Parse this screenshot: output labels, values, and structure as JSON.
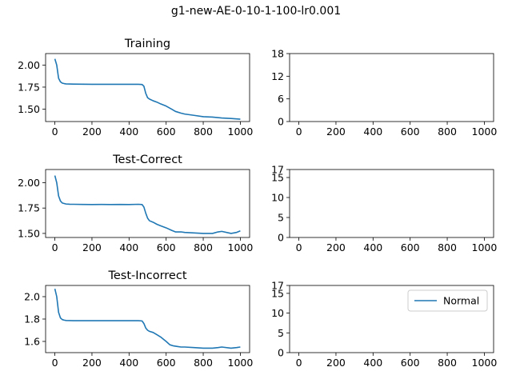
{
  "figure": {
    "title": "g1-new-AE-0-10-1-100-lr0.001"
  },
  "colors": {
    "line": "#1f77b4",
    "axes": "#000000",
    "legend_border": "#cccccc"
  },
  "chart_data": [
    {
      "id": "training",
      "type": "line",
      "title": "Training",
      "xlim": [
        -50,
        1050
      ],
      "ylim": [
        1.36,
        2.13
      ],
      "xticks": [
        0,
        200,
        400,
        600,
        800,
        1000
      ],
      "yticks": [
        1.5,
        1.75,
        2.0
      ],
      "ytick_labels": [
        "1.50",
        "1.75",
        "2.00"
      ],
      "x": [
        0,
        10,
        20,
        30,
        40,
        50,
        60,
        80,
        100,
        150,
        200,
        250,
        300,
        350,
        400,
        450,
        470,
        480,
        490,
        500,
        510,
        530,
        550,
        570,
        600,
        630,
        650,
        680,
        700,
        750,
        800,
        850,
        900,
        950,
        1000
      ],
      "y": [
        2.07,
        2.0,
        1.85,
        1.81,
        1.795,
        1.79,
        1.786,
        1.785,
        1.784,
        1.783,
        1.782,
        1.782,
        1.782,
        1.782,
        1.782,
        1.782,
        1.78,
        1.76,
        1.68,
        1.63,
        1.615,
        1.595,
        1.58,
        1.56,
        1.535,
        1.5,
        1.475,
        1.455,
        1.445,
        1.43,
        1.415,
        1.41,
        1.4,
        1.395,
        1.387
      ],
      "grid": false
    },
    {
      "id": "training-count",
      "type": "line",
      "title": "",
      "xlim": [
        -50,
        1050
      ],
      "ylim": [
        0,
        18
      ],
      "xticks": [
        0,
        200,
        400,
        600,
        800,
        1000
      ],
      "yticks": [
        0,
        6,
        12,
        18
      ],
      "ytick_labels": [
        "0",
        "6",
        "12",
        "18"
      ],
      "series": [],
      "grid": false
    },
    {
      "id": "test-correct",
      "type": "line",
      "title": "Test-Correct",
      "xlim": [
        -50,
        1050
      ],
      "ylim": [
        1.46,
        2.13
      ],
      "xticks": [
        0,
        200,
        400,
        600,
        800,
        1000
      ],
      "yticks": [
        1.5,
        1.75,
        2.0
      ],
      "ytick_labels": [
        "1.50",
        "1.75",
        "2.00"
      ],
      "x": [
        0,
        10,
        20,
        30,
        40,
        50,
        60,
        80,
        100,
        150,
        200,
        250,
        300,
        350,
        400,
        450,
        470,
        480,
        490,
        500,
        510,
        530,
        550,
        570,
        600,
        630,
        650,
        680,
        700,
        750,
        800,
        850,
        880,
        900,
        950,
        980,
        1000
      ],
      "y": [
        2.07,
        2.0,
        1.87,
        1.82,
        1.8,
        1.795,
        1.79,
        1.788,
        1.787,
        1.786,
        1.785,
        1.786,
        1.785,
        1.786,
        1.785,
        1.787,
        1.785,
        1.76,
        1.7,
        1.65,
        1.625,
        1.61,
        1.59,
        1.575,
        1.555,
        1.53,
        1.515,
        1.515,
        1.51,
        1.505,
        1.5,
        1.5,
        1.515,
        1.52,
        1.5,
        1.51,
        1.525
      ],
      "grid": false
    },
    {
      "id": "test-correct-count",
      "type": "line",
      "title": "",
      "xlim": [
        -50,
        1050
      ],
      "ylim": [
        0,
        17
      ],
      "xticks": [
        0,
        200,
        400,
        600,
        800,
        1000
      ],
      "yticks": [
        0,
        5,
        10,
        15,
        17
      ],
      "ytick_labels": [
        "0",
        "5",
        "10",
        "15",
        "17"
      ],
      "series": [],
      "grid": false
    },
    {
      "id": "test-incorrect",
      "type": "line",
      "title": "Test-Incorrect",
      "xlim": [
        -50,
        1050
      ],
      "ylim": [
        1.5,
        2.1
      ],
      "xticks": [
        0,
        200,
        400,
        600,
        800,
        1000
      ],
      "yticks": [
        1.6,
        1.8,
        2.0
      ],
      "ytick_labels": [
        "1.6",
        "1.8",
        "2.0"
      ],
      "x": [
        0,
        10,
        20,
        30,
        40,
        50,
        60,
        80,
        100,
        150,
        200,
        250,
        300,
        350,
        400,
        450,
        470,
        480,
        490,
        500,
        510,
        530,
        550,
        570,
        600,
        620,
        640,
        660,
        680,
        700,
        750,
        800,
        850,
        880,
        900,
        950,
        980,
        1000
      ],
      "y": [
        2.07,
        2.0,
        1.86,
        1.81,
        1.795,
        1.79,
        1.787,
        1.786,
        1.785,
        1.785,
        1.785,
        1.785,
        1.785,
        1.785,
        1.785,
        1.785,
        1.783,
        1.76,
        1.72,
        1.7,
        1.69,
        1.68,
        1.66,
        1.64,
        1.6,
        1.57,
        1.56,
        1.555,
        1.55,
        1.55,
        1.545,
        1.54,
        1.54,
        1.545,
        1.55,
        1.54,
        1.545,
        1.55
      ],
      "grid": false
    },
    {
      "id": "test-incorrect-count",
      "type": "line",
      "title": "",
      "xlim": [
        -50,
        1050
      ],
      "ylim": [
        0,
        17
      ],
      "xticks": [
        0,
        200,
        400,
        600,
        800,
        1000
      ],
      "yticks": [
        0,
        5,
        10,
        15,
        17
      ],
      "ytick_labels": [
        "0",
        "5",
        "10",
        "15",
        "17"
      ],
      "series": [],
      "legend": {
        "placement": "top-right",
        "entries": [
          "Normal"
        ]
      },
      "grid": false
    }
  ]
}
